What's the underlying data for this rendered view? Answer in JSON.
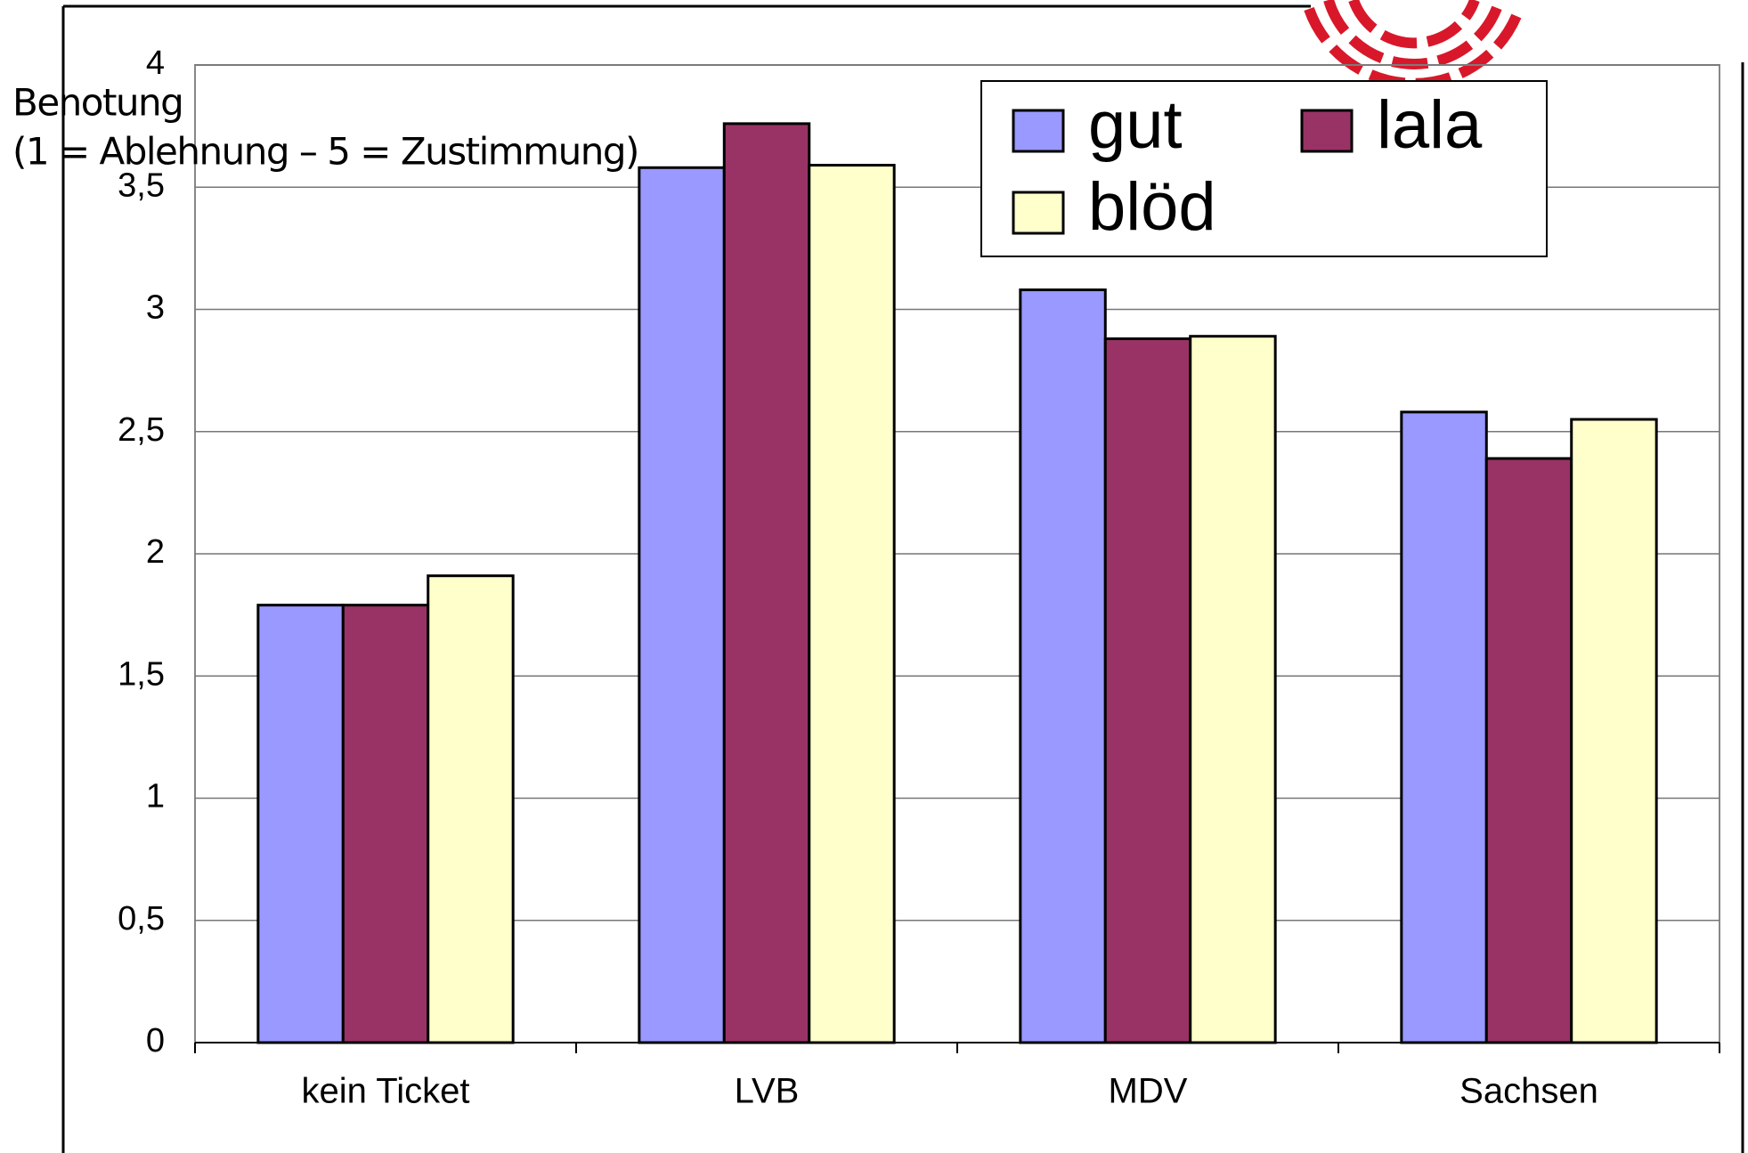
{
  "chart_data": {
    "type": "bar",
    "y_label": [
      "Benotung",
      "(1 = Ablehnung – 5 = Zustimmung)"
    ],
    "categories": [
      "kein Ticket",
      "LVB",
      "MDV",
      "Sachsen"
    ],
    "series": [
      {
        "name": "gut",
        "color": "#9999ff",
        "values": [
          1.79,
          3.58,
          3.08,
          2.58
        ]
      },
      {
        "name": "lala",
        "color": "#993366",
        "values": [
          1.79,
          3.76,
          2.88,
          2.39
        ]
      },
      {
        "name": "blöd",
        "color": "#ffffcc",
        "values": [
          1.91,
          3.59,
          2.89,
          2.55
        ]
      }
    ],
    "ylim": [
      0,
      4
    ],
    "yticks": [
      0,
      {
        "value": 0.5,
        "label": "0,5"
      },
      1,
      {
        "value": 1.5,
        "label": "1,5"
      },
      2,
      {
        "value": 2.5,
        "label": "2,5"
      },
      3,
      {
        "value": 3.5,
        "label": "3,5"
      },
      4
    ],
    "grid": true,
    "legend": "top-right"
  }
}
